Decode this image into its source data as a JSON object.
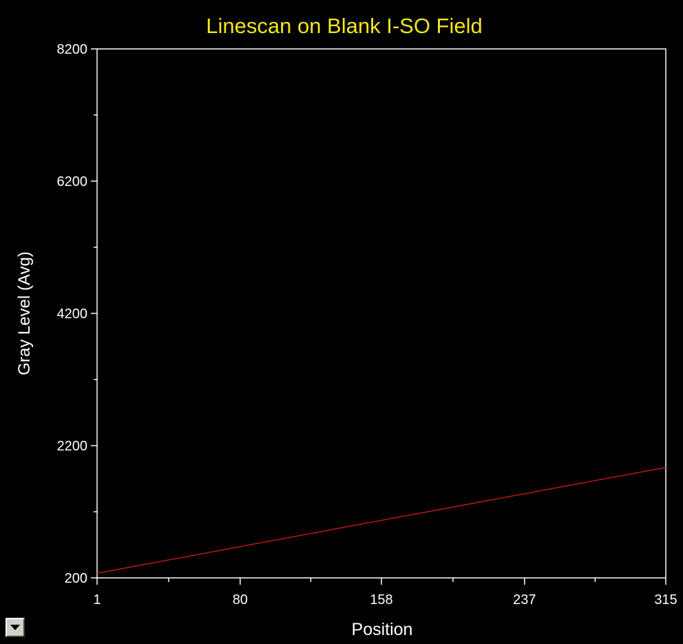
{
  "colors": {
    "background": "#000000",
    "title": "#f2e620",
    "axis": "#ffffff",
    "text": "#ffffff",
    "series": "#b01818"
  },
  "menu_button": {
    "icon": "chevron-down-icon"
  },
  "chart_data": {
    "type": "line",
    "title": "Linescan on Blank I-SO Field",
    "xlabel": "Position",
    "ylabel": "Gray Level (Avg)",
    "xlim": [
      1,
      315
    ],
    "ylim": [
      200,
      8200
    ],
    "xticks": [
      1,
      80,
      158,
      237,
      315
    ],
    "yticks": [
      200,
      2200,
      4200,
      6200,
      8200
    ],
    "grid": false,
    "legend": "none",
    "series": [
      {
        "x": [
          1,
          315
        ],
        "y": [
          270,
          1870
        ]
      }
    ]
  }
}
